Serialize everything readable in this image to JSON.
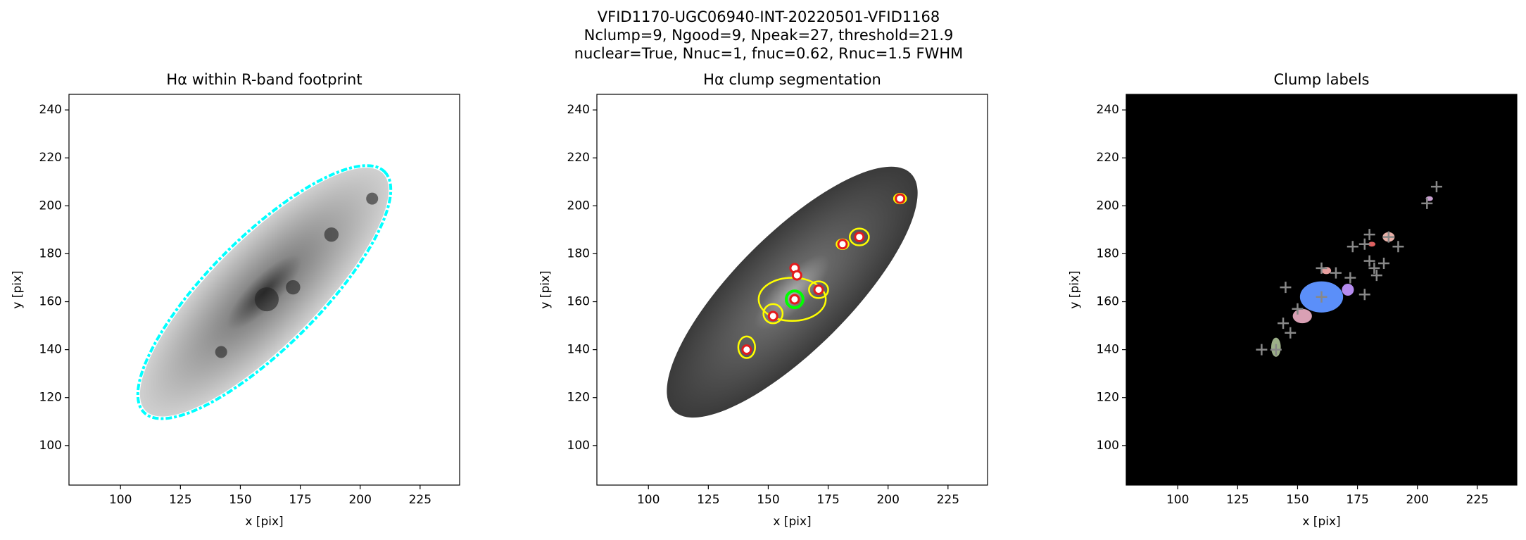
{
  "figure_title": [
    "VFID1170-UGC06940-INT-20220501-VFID1168",
    "Nclump=9, Ngood=9, Npeak=27, threshold=21.9",
    "nuclear=True, Nnuc=1, fnuc=0.62, Rnuc=1.5 FWHM"
  ],
  "chart_data": [
    {
      "type": "image",
      "title": "Hα within R-band footprint",
      "xlabel": "x [pix]",
      "ylabel": "y [pix]",
      "xlim": [
        78.5,
        241.5
      ],
      "ylim": [
        83.5,
        246.5
      ],
      "xticks": [
        100,
        125,
        150,
        175,
        200,
        225
      ],
      "yticks": [
        100,
        120,
        140,
        160,
        180,
        200,
        220,
        240
      ]
    },
    {
      "type": "image",
      "title": "Hα clump segmentation",
      "xlabel": "x [pix]",
      "ylabel": "y [pix]",
      "xlim": [
        78.5,
        241.5
      ],
      "ylim": [
        83.5,
        246.5
      ],
      "xticks": [
        100,
        125,
        150,
        175,
        200,
        225
      ],
      "yticks": [
        100,
        120,
        140,
        160,
        180,
        200,
        220,
        240
      ],
      "markers": [
        {
          "x": [
            141,
            152,
            161,
            162,
            161,
            171,
            181,
            188,
            205
          ],
          "y": [
            140,
            154,
            174,
            171,
            161,
            165,
            184,
            187,
            203
          ],
          "color": "#e41a1c"
        }
      ]
    },
    {
      "type": "image",
      "title": "Clump labels",
      "xlabel": "x [pix]",
      "ylabel": "y [pix]",
      "xlim": [
        78.5,
        241.5
      ],
      "ylim": [
        83.5,
        246.5
      ],
      "xticks": [
        100,
        125,
        150,
        175,
        200,
        225
      ],
      "yticks": [
        100,
        120,
        140,
        160,
        180,
        200,
        220,
        240
      ],
      "markers": [
        {
          "x": [
            208,
            204,
            192,
            180,
            178,
            173,
            180,
            182,
            186,
            183,
            178,
            172,
            166,
            160,
            160,
            145,
            150,
            144,
            147,
            135,
            141,
            188
          ],
          "y": [
            208,
            201,
            183,
            188,
            184,
            183,
            177,
            174,
            176,
            171,
            163,
            170,
            172,
            174,
            162,
            166,
            157,
            151,
            147,
            140,
            140,
            187
          ],
          "color": "#888888"
        }
      ]
    }
  ]
}
